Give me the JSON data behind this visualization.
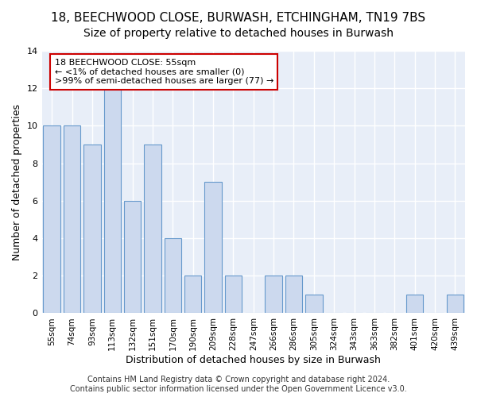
{
  "title": "18, BEECHWOOD CLOSE, BURWASH, ETCHINGHAM, TN19 7BS",
  "subtitle": "Size of property relative to detached houses in Burwash",
  "xlabel": "Distribution of detached houses by size in Burwash",
  "ylabel": "Number of detached properties",
  "categories": [
    "55sqm",
    "74sqm",
    "93sqm",
    "113sqm",
    "132sqm",
    "151sqm",
    "170sqm",
    "190sqm",
    "209sqm",
    "228sqm",
    "247sqm",
    "266sqm",
    "286sqm",
    "305sqm",
    "324sqm",
    "343sqm",
    "363sqm",
    "382sqm",
    "401sqm",
    "420sqm",
    "439sqm"
  ],
  "values": [
    10,
    10,
    9,
    12,
    6,
    9,
    4,
    2,
    7,
    2,
    0,
    2,
    2,
    1,
    0,
    0,
    0,
    0,
    1,
    0,
    1
  ],
  "bar_color": "#ccd9ee",
  "bar_edge_color": "#6699cc",
  "annotation_title": "18 BEECHWOOD CLOSE: 55sqm",
  "annotation_line1": "← <1% of detached houses are smaller (0)",
  "annotation_line2": ">99% of semi-detached houses are larger (77) →",
  "annotation_box_color": "#ffffff",
  "annotation_box_edge_color": "#cc0000",
  "ylim": [
    0,
    14
  ],
  "yticks": [
    0,
    2,
    4,
    6,
    8,
    10,
    12,
    14
  ],
  "footer": "Contains HM Land Registry data © Crown copyright and database right 2024.\nContains public sector information licensed under the Open Government Licence v3.0.",
  "bg_color": "#ffffff",
  "plot_bg_color": "#e8eef8",
  "grid_color": "#ffffff",
  "title_fontsize": 11,
  "subtitle_fontsize": 10,
  "xlabel_fontsize": 9,
  "ylabel_fontsize": 9,
  "footer_fontsize": 7
}
